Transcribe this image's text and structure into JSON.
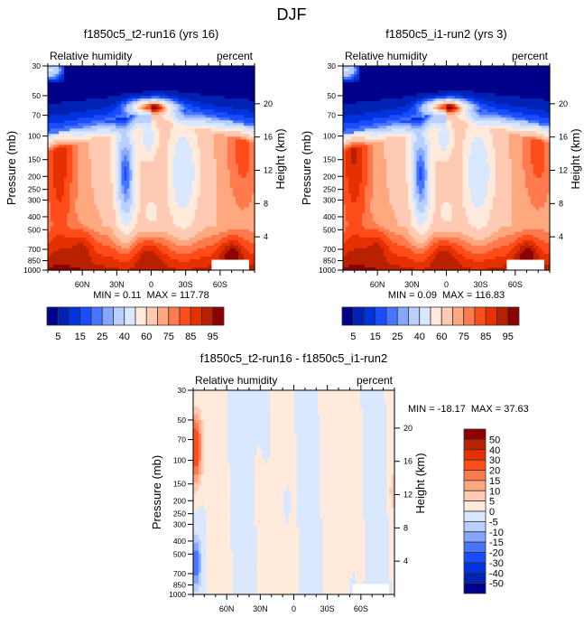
{
  "figure_title": "DJF",
  "chart_data": [
    {
      "type": "heatmap",
      "title": "f1850c5_t2-run16 (yrs 16)",
      "left_string": "Relative humidity",
      "right_string": "percent",
      "variable": "Relative humidity",
      "units": "percent",
      "xlabel": "",
      "ylabel": "Pressure (mb)",
      "y2label": "Height (km)",
      "x_ticks": [
        "60N",
        "30N",
        "0",
        "30S",
        "60S"
      ],
      "x_tick_values": [
        60,
        30,
        0,
        -30,
        -60
      ],
      "xlim": [
        90,
        -90
      ],
      "y_ticks": [
        30,
        50,
        70,
        100,
        150,
        200,
        250,
        300,
        400,
        500,
        700,
        850,
        1000
      ],
      "ylim": [
        30,
        1000
      ],
      "y_scale": "log",
      "y2_ticks": [
        20,
        16,
        12,
        8,
        4
      ],
      "min_label": "MIN =   0.11",
      "max_label": "MAX = 117.78",
      "min": 0.11,
      "max": 117.78,
      "colorbar": {
        "orientation": "horizontal",
        "levels": [
          5,
          10,
          15,
          20,
          25,
          30,
          40,
          50,
          60,
          70,
          75,
          80,
          85,
          90,
          95
        ],
        "labels": [
          "5",
          "15",
          "25",
          "40",
          "60",
          "75",
          "85",
          "95"
        ],
        "colors": [
          "#00008b",
          "#0022b4",
          "#0033dd",
          "#1a4dff",
          "#4775ff",
          "#85a7ff",
          "#b8cfff",
          "#d9e8ff",
          "#ffeadb",
          "#ffcab3",
          "#ffa880",
          "#ff7a4d",
          "#ff4d1a",
          "#e63000",
          "#b82000",
          "#8b0000"
        ]
      },
      "features": "low RH (<5%) in stratosphere above ~100mb and above tropopause in southern hemisphere; high RH (>95%) near tropical tropopause ~100mb; dry subtropical descent minima (~25%) near 30N-15N at 400-600mb and weaker minimum (~40%) near 20S-40S; moist boundary layer (>85%) near surface; moist high latitudes in mid troposphere"
    },
    {
      "type": "heatmap",
      "title": "f1850c5_i1-run2 (yrs 3)",
      "left_string": "Relative humidity",
      "right_string": "percent",
      "variable": "Relative humidity",
      "units": "percent",
      "xlabel": "",
      "ylabel": "Pressure (mb)",
      "y2label": "Height (km)",
      "x_ticks": [
        "60N",
        "30N",
        "0",
        "30S",
        "60S"
      ],
      "x_tick_values": [
        60,
        30,
        0,
        -30,
        -60
      ],
      "xlim": [
        90,
        -90
      ],
      "y_ticks": [
        30,
        50,
        70,
        100,
        150,
        200,
        250,
        300,
        400,
        500,
        700,
        850,
        1000
      ],
      "ylim": [
        30,
        1000
      ],
      "y_scale": "log",
      "y2_ticks": [
        20,
        16,
        12,
        8,
        4
      ],
      "min_label": "MIN =   0.09",
      "max_label": "MAX = 116.83",
      "min": 0.09,
      "max": 116.83,
      "colorbar": {
        "orientation": "horizontal",
        "levels": [
          5,
          10,
          15,
          20,
          25,
          30,
          40,
          50,
          60,
          70,
          75,
          80,
          85,
          90,
          95
        ],
        "labels": [
          "5",
          "15",
          "25",
          "40",
          "60",
          "75",
          "85",
          "95"
        ],
        "colors": [
          "#00008b",
          "#0022b4",
          "#0033dd",
          "#1a4dff",
          "#4775ff",
          "#85a7ff",
          "#b8cfff",
          "#d9e8ff",
          "#ffeadb",
          "#ffcab3",
          "#ffa880",
          "#ff7a4d",
          "#ff4d1a",
          "#e63000",
          "#b82000",
          "#8b0000"
        ]
      },
      "features": "pattern nearly identical to first panel; slightly moister northern high latitudes in upper troposphere"
    },
    {
      "type": "heatmap",
      "title": "f1850c5_t2-run16 - f1850c5_i1-run2",
      "left_string": "Relative humidity",
      "right_string": "percent",
      "variable": "Relative humidity difference",
      "units": "percent",
      "xlabel": "",
      "ylabel": "Pressure (mb)",
      "y2label": "Height (km)",
      "x_ticks": [
        "60N",
        "30N",
        "0",
        "30S",
        "60S"
      ],
      "x_tick_values": [
        60,
        30,
        0,
        -30,
        -60
      ],
      "xlim": [
        90,
        -90
      ],
      "y_ticks": [
        30,
        50,
        70,
        100,
        150,
        200,
        250,
        300,
        400,
        500,
        700,
        850,
        1000
      ],
      "ylim": [
        30,
        1000
      ],
      "y_scale": "log",
      "y2_ticks": [
        20,
        16,
        12,
        8,
        4
      ],
      "min_label": "MIN = -18.17",
      "max_label": "MAX =  37.63",
      "min": -18.17,
      "max": 37.63,
      "colorbar": {
        "orientation": "vertical",
        "levels": [
          -50,
          -40,
          -30,
          -20,
          -15,
          -10,
          -5,
          0,
          5,
          10,
          15,
          20,
          30,
          40,
          50
        ],
        "labels": [
          "50",
          "40",
          "30",
          "20",
          "15",
          "10",
          "5",
          "0",
          "-5",
          "-10",
          "-15",
          "-20",
          "-30",
          "-40",
          "-50"
        ],
        "colors": [
          "#00008b",
          "#0022b4",
          "#0033dd",
          "#1a4dff",
          "#4775ff",
          "#85a7ff",
          "#b8cfff",
          "#d9e8ff",
          "#ffeadb",
          "#ffcab3",
          "#ffa880",
          "#ff7a4d",
          "#ff4d1a",
          "#e63000",
          "#b82000",
          "#8b0000"
        ]
      },
      "features": "largely small differences (-5..5) alternating in vertical bands; positive anomaly up to ~30 near north pole 50-300mb; negative anomaly down to ~-20 near north pole 700-1000mb; weak negative (~-10) near 10N 400-600mb"
    }
  ]
}
